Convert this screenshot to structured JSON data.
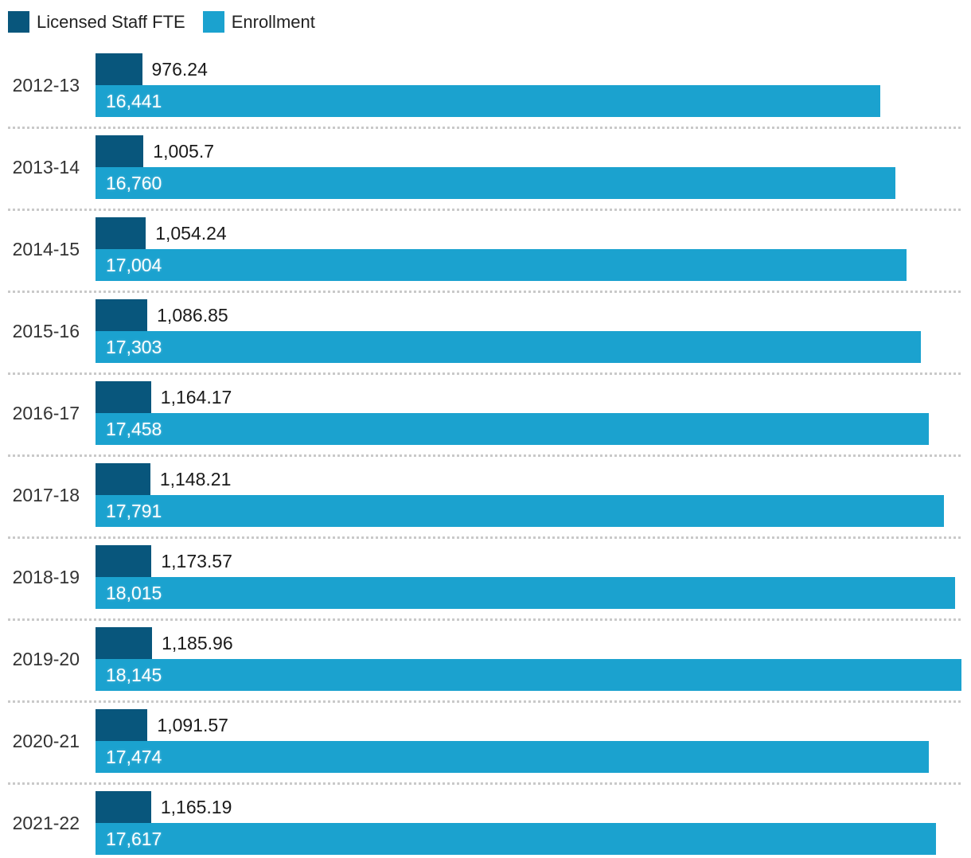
{
  "legend": {
    "items": [
      {
        "label": "Licensed Staff FTE",
        "color": "#08567c"
      },
      {
        "label": "Enrollment",
        "color": "#1ba2cf"
      }
    ]
  },
  "chart_data": {
    "type": "bar",
    "orientation": "horizontal",
    "legend_position": "top",
    "grid": "dotted-row-separators",
    "axis_max": 18350,
    "xlim": [
      0,
      18350
    ],
    "categories": [
      "2012-13",
      "2013-14",
      "2014-15",
      "2015-16",
      "2016-17",
      "2017-18",
      "2018-19",
      "2019-20",
      "2020-21",
      "2021-22"
    ],
    "series": [
      {
        "name": "Licensed Staff FTE",
        "color": "#08567c",
        "values": [
          976.24,
          1005.7,
          1054.24,
          1086.85,
          1164.17,
          1148.21,
          1173.57,
          1185.96,
          1091.57,
          1165.19
        ],
        "labels": [
          "976.24",
          "1,005.7",
          "1,054.24",
          "1,086.85",
          "1,164.17",
          "1,148.21",
          "1,173.57",
          "1,185.96",
          "1,091.57",
          "1,165.19"
        ]
      },
      {
        "name": "Enrollment",
        "color": "#1ba2cf",
        "values": [
          16441,
          16760,
          17004,
          17303,
          17458,
          17791,
          18015,
          18145,
          17474,
          17617
        ],
        "labels": [
          "16,441",
          "16,760",
          "17,004",
          "17,303",
          "17,458",
          "17,791",
          "18,015",
          "18,145",
          "17,474",
          "17,617"
        ]
      }
    ],
    "colors": {
      "fte_bar": "#08567c",
      "enrollment_bar": "#1ba2cf",
      "separator": "#c9c9c9",
      "year_label": "#333333",
      "value_label": "#1a1a1a",
      "enrollment_label": "#ffffff"
    }
  }
}
